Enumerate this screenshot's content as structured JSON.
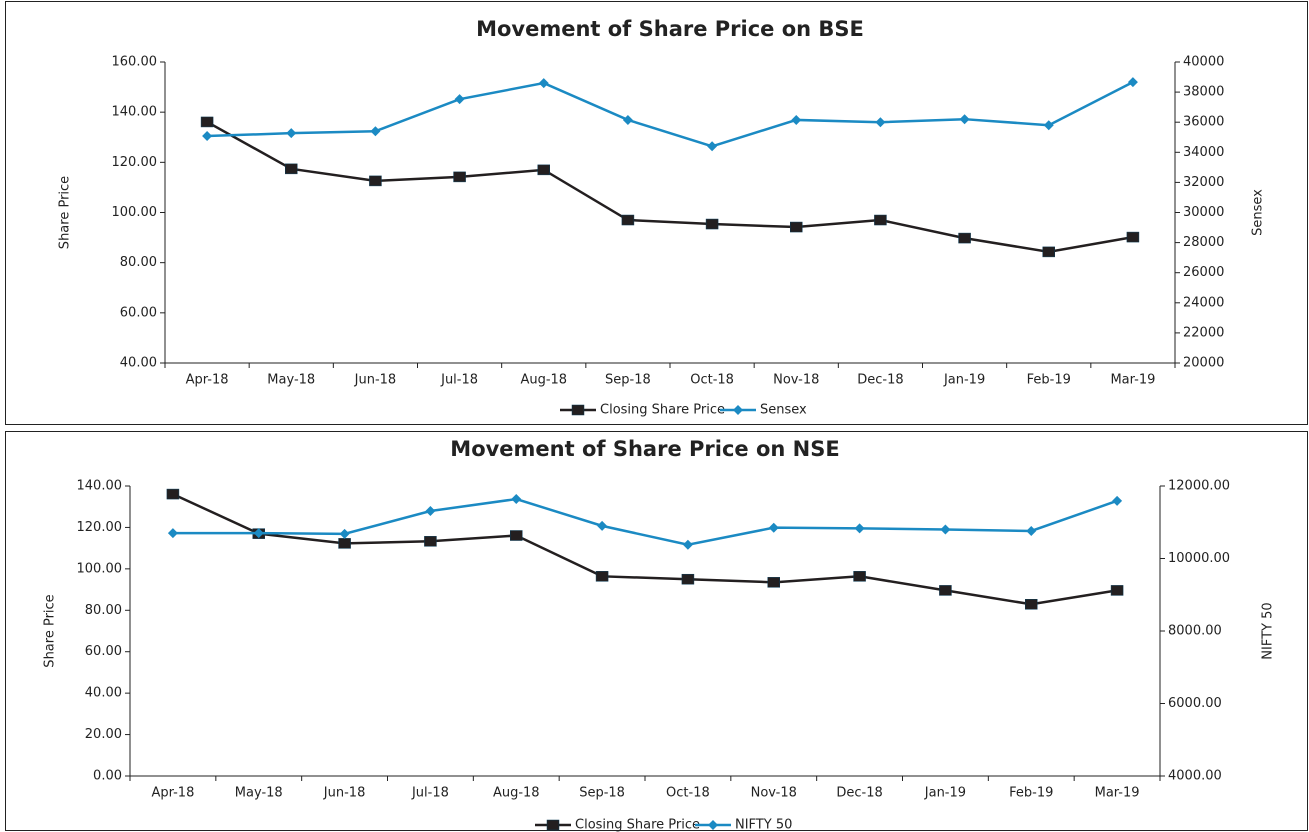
{
  "chart_data": [
    {
      "type": "line",
      "title": "Movement of Share Price on BSE",
      "ylabel": "Share Price",
      "y2label": "Sensex",
      "categories": [
        "Apr-18",
        "May-18",
        "Jun-18",
        "Jul-18",
        "Aug-18",
        "Sep-18",
        "Oct-18",
        "Nov-18",
        "Dec-18",
        "Jan-19",
        "Feb-19",
        "Mar-19"
      ],
      "series": [
        {
          "name": "Closing Share Price",
          "color": "#231f20",
          "marker": "square",
          "values": [
            136.1,
            117.4,
            112.6,
            114.2,
            117.0,
            97.0,
            95.4,
            94.2,
            97.0,
            89.8,
            84.3,
            90.2
          ]
        },
        {
          "name": "Sensex",
          "color": "#1b8ac3",
          "marker": "diamond",
          "axis": "y2",
          "values": [
            35080,
            35270,
            35400,
            37530,
            38600,
            36150,
            34400,
            36150,
            36000,
            36200,
            35800,
            38660
          ]
        }
      ],
      "ylim": [
        40,
        160
      ],
      "yticks": [
        {
          "value": 40,
          "label": "40.00"
        },
        {
          "value": 60,
          "label": "60.00"
        },
        {
          "value": 80,
          "label": "80.00"
        },
        {
          "value": 100,
          "label": "100.00"
        },
        {
          "value": 120,
          "label": "120.00"
        },
        {
          "value": 140,
          "label": "140.00"
        },
        {
          "value": 160,
          "label": "160.00"
        }
      ],
      "y2lim": [
        20000,
        40000
      ],
      "y2ticks": [
        20000,
        22000,
        24000,
        26000,
        28000,
        30000,
        32000,
        34000,
        36000,
        38000,
        40000
      ],
      "legend": "bottom",
      "grid": false
    },
    {
      "type": "line",
      "title": "Movement of Share Price on NSE",
      "ylabel": "Share Price",
      "y2label": "NIFTY 50",
      "categories": [
        "Apr-18",
        "May-18",
        "Jun-18",
        "Jul-18",
        "Aug-18",
        "Sep-18",
        "Oct-18",
        "Nov-18",
        "Dec-18",
        "Jan-19",
        "Feb-19",
        "Mar-19"
      ],
      "series": [
        {
          "name": "Closing Share Price",
          "color": "#231f20",
          "marker": "square",
          "values": [
            136.1,
            117.0,
            112.3,
            113.3,
            116.1,
            96.4,
            95.0,
            93.5,
            96.4,
            89.6,
            82.9,
            89.6
          ]
        },
        {
          "name": "NIFTY 50",
          "color": "#1b8ac3",
          "marker": "diamond",
          "axis": "y2",
          "values": [
            10700,
            10700,
            10680,
            11310,
            11640,
            10900,
            10380,
            10850,
            10830,
            10800,
            10760,
            11590
          ]
        }
      ],
      "ylim": [
        0,
        140
      ],
      "yticks": [
        {
          "value": 0,
          "label": "0.00"
        },
        {
          "value": 20,
          "label": "20.00"
        },
        {
          "value": 40,
          "label": "40.00"
        },
        {
          "value": 60,
          "label": "60.00"
        },
        {
          "value": 80,
          "label": "80.00"
        },
        {
          "value": 100,
          "label": "100.00"
        },
        {
          "value": 120,
          "label": "120.00"
        },
        {
          "value": 140,
          "label": "140.00"
        }
      ],
      "y2lim": [
        4000,
        12000
      ],
      "y2ticks": [
        {
          "value": 4000,
          "label": "4000.00"
        },
        {
          "value": 6000,
          "label": "6000.00"
        },
        {
          "value": 8000,
          "label": "8000.00"
        },
        {
          "value": 10000,
          "label": "10000.00"
        },
        {
          "value": 12000,
          "label": "12000.00"
        }
      ],
      "legend": "bottom",
      "grid": false
    }
  ]
}
